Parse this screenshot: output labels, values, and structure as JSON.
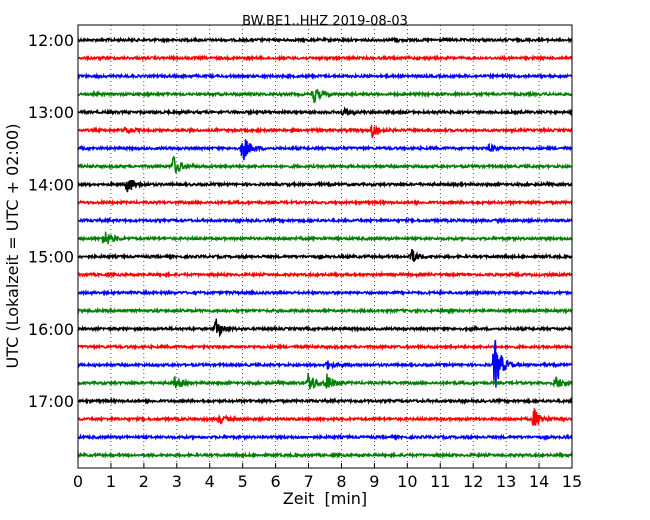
{
  "chart_data": {
    "type": "line",
    "title": "BW.BE1..HHZ 2019-08-03",
    "xlabel": "Zeit  [min]",
    "ylabel": "UTC (Lokalzeit = UTC + 02:00)",
    "xlim": [
      0,
      15
    ],
    "x_ticks": [
      "0",
      "1",
      "2",
      "3",
      "4",
      "5",
      "6",
      "7",
      "8",
      "9",
      "10",
      "11",
      "12",
      "13",
      "14",
      "15"
    ],
    "y_tick_labels": [
      "12:00",
      "13:00",
      "14:00",
      "15:00",
      "16:00",
      "17:00"
    ],
    "grid": {
      "vertical_dotted": true
    },
    "line_minutes": 15,
    "series_colors": [
      "#000000",
      "#ff0000",
      "#0000ff",
      "#008000"
    ],
    "traces": [
      {
        "label": "12:00",
        "events": [
          {
            "t": 9.55,
            "a": 0.15
          }
        ]
      },
      {
        "label": "12:15",
        "events": []
      },
      {
        "label": "12:30",
        "events": []
      },
      {
        "label": "12:45",
        "events": [
          {
            "t": 7.15,
            "a": 0.6
          }
        ]
      },
      {
        "label": "13:00",
        "events": [
          {
            "t": 8.05,
            "a": 0.3
          }
        ]
      },
      {
        "label": "13:15",
        "events": [
          {
            "t": 8.95,
            "a": 0.55
          },
          {
            "t": 1.45,
            "a": 0.25
          }
        ]
      },
      {
        "label": "13:30",
        "events": [
          {
            "t": 5.0,
            "a": 1.0
          },
          {
            "t": 12.5,
            "a": 0.25
          }
        ]
      },
      {
        "label": "13:45",
        "events": [
          {
            "t": 2.9,
            "a": 0.75
          }
        ]
      },
      {
        "label": "14:00",
        "events": [
          {
            "t": 1.5,
            "a": 0.65
          }
        ]
      },
      {
        "label": "14:15",
        "events": []
      },
      {
        "label": "14:30",
        "events": []
      },
      {
        "label": "14:45",
        "events": [
          {
            "t": 0.8,
            "a": 0.7
          }
        ]
      },
      {
        "label": "15:00",
        "events": [
          {
            "t": 10.1,
            "a": 0.6
          }
        ]
      },
      {
        "label": "15:15",
        "events": []
      },
      {
        "label": "15:30",
        "events": []
      },
      {
        "label": "15:45",
        "events": []
      },
      {
        "label": "16:00",
        "events": [
          {
            "t": 4.2,
            "a": 0.7
          }
        ]
      },
      {
        "label": "16:15",
        "events": []
      },
      {
        "label": "16:30",
        "events": [
          {
            "t": 12.65,
            "a": 2.0
          },
          {
            "t": 7.55,
            "a": 0.3
          }
        ]
      },
      {
        "label": "16:45",
        "events": [
          {
            "t": 7.0,
            "a": 0.8
          },
          {
            "t": 7.55,
            "a": 0.6
          },
          {
            "t": 2.95,
            "a": 0.45
          },
          {
            "t": 14.5,
            "a": 0.45
          }
        ]
      },
      {
        "label": "17:00",
        "events": []
      },
      {
        "label": "17:15",
        "events": [
          {
            "t": 13.85,
            "a": 0.75
          },
          {
            "t": 4.3,
            "a": 0.3
          }
        ]
      },
      {
        "label": "17:30",
        "events": []
      },
      {
        "label": "17:45",
        "events": []
      }
    ]
  }
}
